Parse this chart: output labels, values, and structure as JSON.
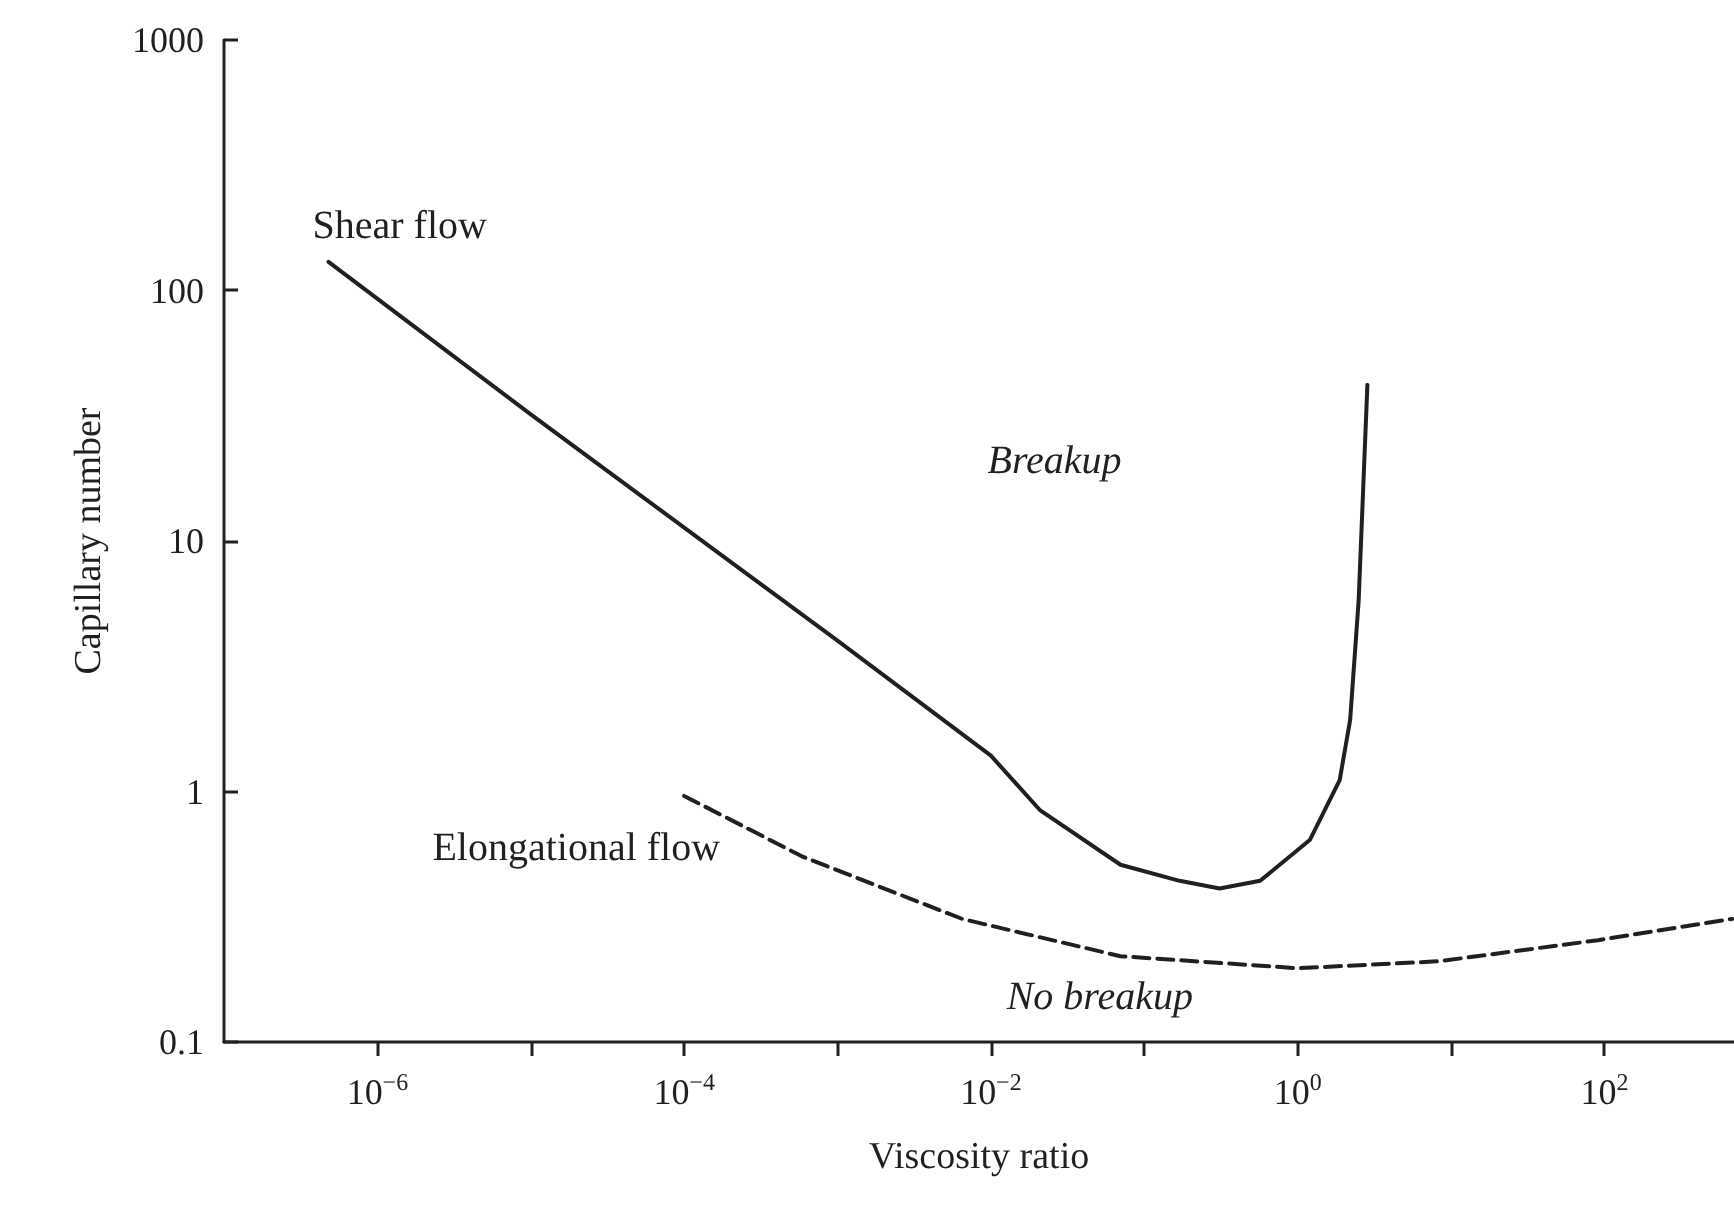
{
  "chart_data": {
    "type": "line",
    "xlabel": "Viscosity ratio",
    "ylabel": "Capillary number",
    "log": "xy",
    "xlim": [
      1e-07,
      700
    ],
    "ylim": [
      0.1,
      1000
    ],
    "xticks": [
      {
        "value": 1e-06,
        "label": "10$^{−6}$"
      },
      {
        "value": 1e-05,
        "label": null
      },
      {
        "value": 0.0001,
        "label": "10$^{−4}$"
      },
      {
        "value": 0.001,
        "label": null
      },
      {
        "value": 0.01,
        "label": "10$^{−2}$"
      },
      {
        "value": 0.1,
        "label": null
      },
      {
        "value": 1,
        "label": "10$^{0}$"
      },
      {
        "value": 10,
        "label": null
      },
      {
        "value": 100,
        "label": "10$^{2}$"
      }
    ],
    "yticks": [
      0.1,
      1,
      10,
      100,
      1000
    ],
    "grid": false,
    "legend": false,
    "marker": "none",
    "series": [
      {
        "name": "Shear flow",
        "color": "#231f20",
        "line_style": "solid",
        "x": [
          4.8e-07,
          1e-05,
          0.001,
          0.01,
          0.021,
          0.07,
          0.17,
          0.31,
          0.57,
          1.2,
          1.88,
          2.2,
          2.5,
          2.85
        ],
        "values": [
          130,
          32,
          4.0,
          1.39,
          0.84,
          0.51,
          0.44,
          0.41,
          0.44,
          0.64,
          1.11,
          1.93,
          5.8,
          42
        ]
      },
      {
        "name": "Elongational flow",
        "color": "#231f20",
        "line_style": "dashed",
        "x": [
          0.0001,
          0.00059,
          0.0065,
          0.07,
          1,
          8.3,
          91,
          680
        ],
        "values": [
          0.96,
          0.55,
          0.31,
          0.22,
          0.197,
          0.21,
          0.255,
          0.31
        ]
      }
    ],
    "annotations": [
      "Breakup",
      "No breakup"
    ]
  }
}
